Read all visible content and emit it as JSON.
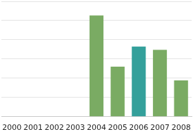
{
  "chart_data": {
    "type": "bar",
    "categories": [
      "2000",
      "2001",
      "2002",
      "2003",
      "2004",
      "2005",
      "2006",
      "2007",
      "2008"
    ],
    "values": [
      null,
      null,
      null,
      null,
      5.27,
      2.6,
      3.65,
      3.48,
      1.89
    ],
    "colors": [
      "#7aab63",
      "#7aab63",
      "#7aab63",
      "#7aab63",
      "#7aab63",
      "#7aab63",
      "#34a09b",
      "#7aab63",
      "#7aab63"
    ],
    "ylim": [
      0,
      6
    ],
    "yticks": [
      0,
      1,
      2,
      3,
      4,
      5,
      6
    ],
    "grid": true,
    "tick_labels": "x"
  }
}
